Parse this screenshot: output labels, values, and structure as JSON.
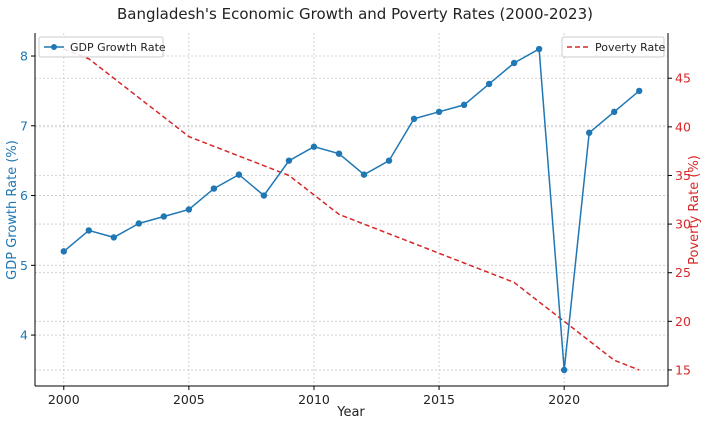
{
  "chart_data": {
    "type": "line",
    "title": "Bangladesh's Economic Growth and Poverty Rates (2000-2023)",
    "xlabel": "Year",
    "ylabel_left": "GDP Growth Rate (%)",
    "ylabel_right": "Poverty Rate (%)",
    "x": [
      2000,
      2001,
      2002,
      2003,
      2004,
      2005,
      2006,
      2007,
      2008,
      2009,
      2010,
      2011,
      2012,
      2013,
      2014,
      2015,
      2016,
      2017,
      2018,
      2019,
      2020,
      2021,
      2022,
      2023
    ],
    "xlim": [
      1998.85,
      2024.15
    ],
    "x_ticks": [
      2000,
      2005,
      2010,
      2015,
      2020
    ],
    "grid": true,
    "series": [
      {
        "name": "GDP Growth Rate",
        "axis": "left",
        "style": "solid-marker",
        "color": "#1f77b4",
        "legend_position": "top-left",
        "values": [
          5.2,
          5.5,
          5.4,
          5.6,
          5.7,
          5.8,
          6.1,
          6.3,
          6.0,
          6.5,
          6.7,
          6.6,
          6.3,
          6.5,
          7.1,
          7.2,
          7.3,
          7.6,
          7.9,
          8.1,
          3.5,
          6.9,
          7.2,
          7.5
        ]
      },
      {
        "name": "Poverty Rate",
        "axis": "right",
        "style": "dashed",
        "color": "#d62728",
        "legend_position": "top-right",
        "values": [
          48,
          47,
          45,
          43,
          41,
          39,
          38,
          37,
          36,
          35,
          33,
          31,
          30,
          29,
          28,
          27,
          26,
          25,
          24,
          22,
          20,
          18,
          16,
          15
        ]
      }
    ],
    "ylim_left": [
      3.27,
      8.33
    ],
    "y_ticks_left": [
      4,
      5,
      6,
      7,
      8
    ],
    "ylim_right": [
      13.35,
      49.65
    ],
    "y_ticks_right": [
      15,
      20,
      25,
      30,
      35,
      40,
      45
    ]
  }
}
